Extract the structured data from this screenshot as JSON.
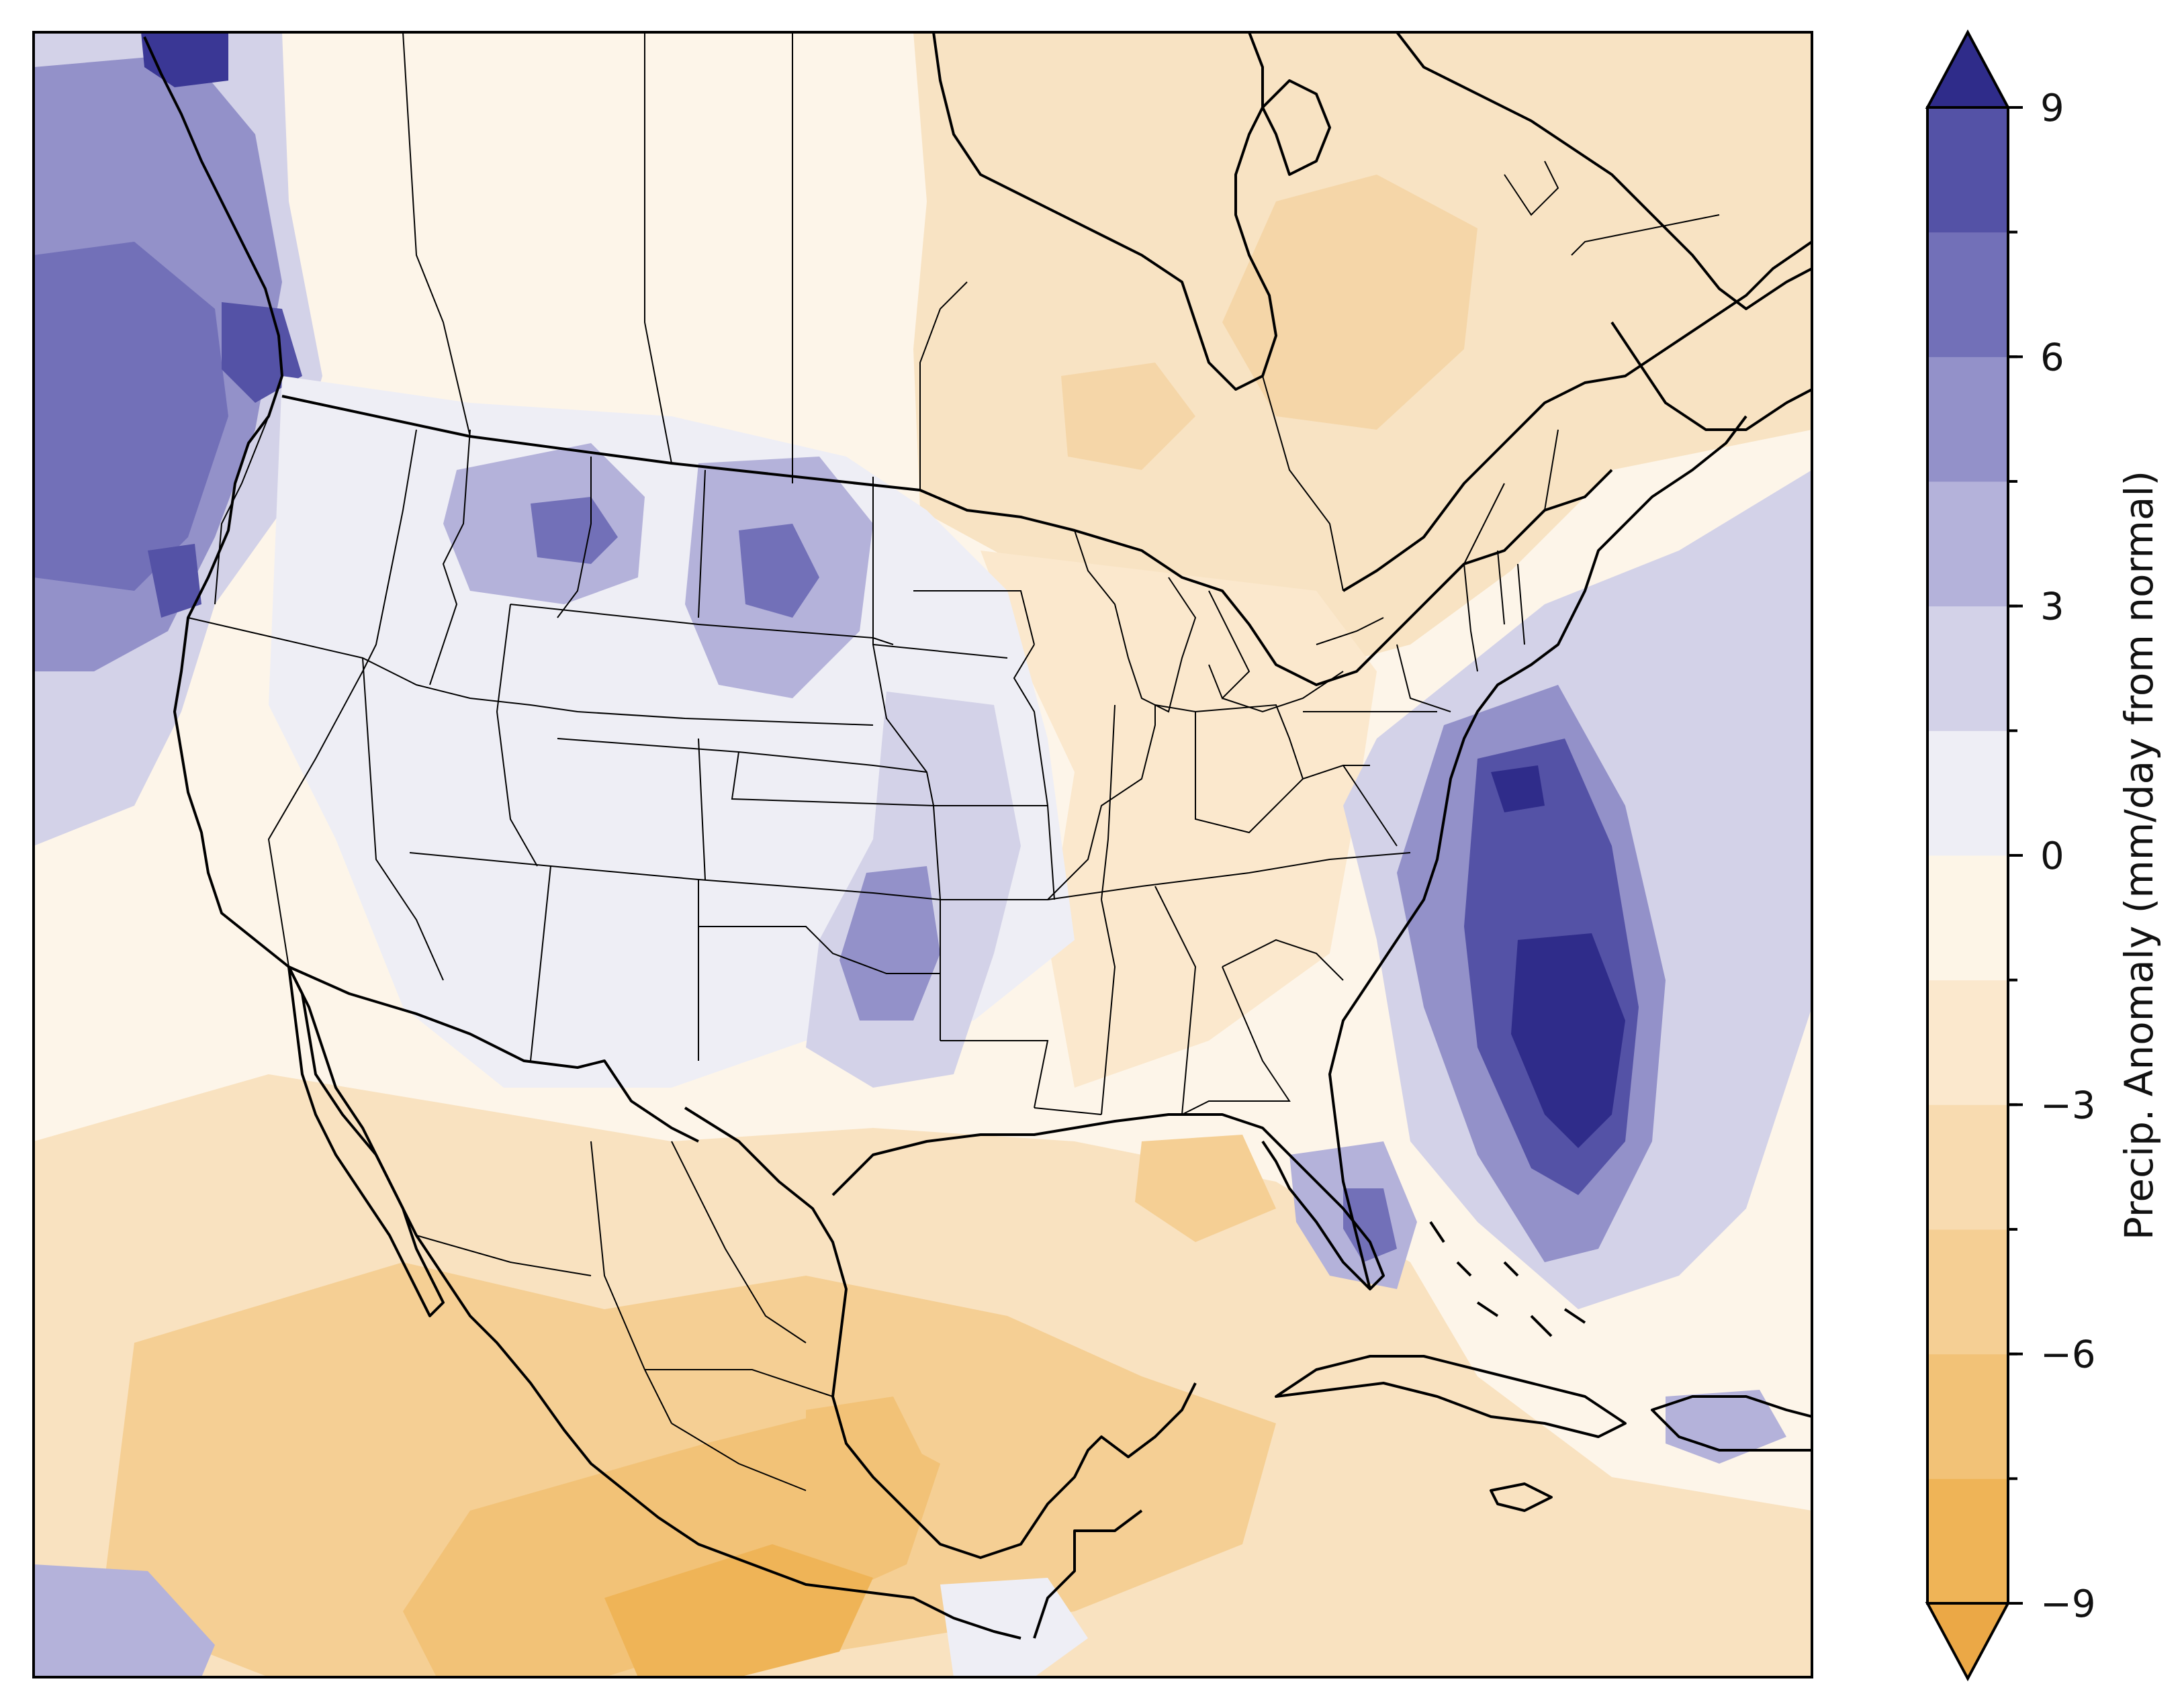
{
  "colorbar": {
    "label": "Precip. Anomaly (mm/day from normal)",
    "ticks": [
      {
        "value": 9,
        "text": "9"
      },
      {
        "value": 6,
        "text": "6"
      },
      {
        "value": 3,
        "text": "3"
      },
      {
        "value": 0,
        "text": "0"
      },
      {
        "value": -3,
        "text": "−3"
      },
      {
        "value": -6,
        "text": "−6"
      },
      {
        "value": -9,
        "text": "−9"
      }
    ],
    "range": [
      -9,
      9
    ],
    "extend": "both",
    "levels": [
      -9,
      -7.5,
      -6,
      -4.5,
      -3,
      -1.5,
      0,
      1.5,
      3,
      4.5,
      6,
      7.5,
      9
    ],
    "colors": [
      "#efb457",
      "#f2c277",
      "#f5cf94",
      "#f8dbb0",
      "#fbe8cd",
      "#fdf5e7",
      "#eeeef5",
      "#d3d2e8",
      "#b4b2da",
      "#9391c9",
      "#7270b8",
      "#5452a6",
      "#3a3795"
    ],
    "under_color": "#eba846",
    "over_color": "#2f2c8a"
  },
  "map": {
    "region": "North America (United States, southern Canada, Mexico, Caribbean)",
    "background_color": "#fdf5e9",
    "anomaly_features": [
      {
        "id": "pacific-northwest-wet",
        "value": 6
      },
      {
        "id": "bc-coast-wet",
        "value": 8
      },
      {
        "id": "montana-wet",
        "value": 5
      },
      {
        "id": "north-dakota-wet",
        "value": 6
      },
      {
        "id": "southern-plains-wet",
        "value": 5
      },
      {
        "id": "atlantic-coast-wet",
        "value": 9
      },
      {
        "id": "florida-wet",
        "value": 5
      },
      {
        "id": "hispaniola-wet",
        "value": 4
      },
      {
        "id": "eastern-canada-dry",
        "value": -3
      },
      {
        "id": "southeast-us-dry",
        "value": -2
      },
      {
        "id": "gulf-of-mexico-dry",
        "value": -3
      },
      {
        "id": "mexico-dry",
        "value": -6
      },
      {
        "id": "southern-mexico-dry",
        "value": -8
      }
    ]
  }
}
